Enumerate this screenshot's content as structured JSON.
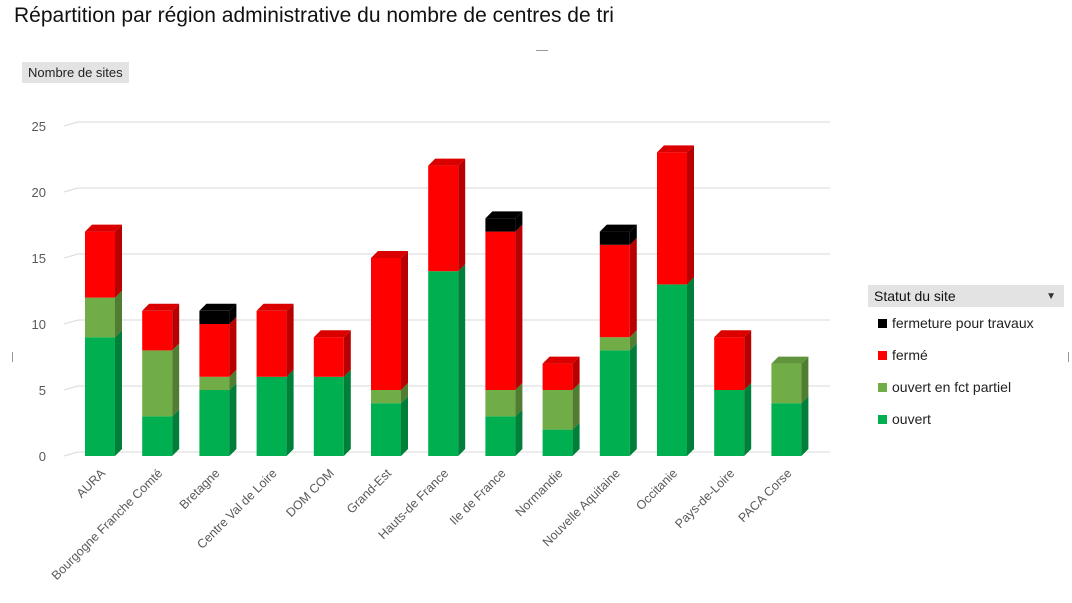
{
  "page": {
    "title": "Répartition par région administrative du nombre de centres de tri"
  },
  "legend": {
    "title": "Statut du site",
    "items": [
      {
        "label": "fermeture pour travaux",
        "color": "#000000"
      },
      {
        "label": "fermé",
        "color": "#ff0000"
      },
      {
        "label": "ouvert en fct partiel",
        "color": "#70ad47"
      },
      {
        "label": "ouvert",
        "color": "#00b050"
      }
    ]
  },
  "chart_data": {
    "type": "bar",
    "stacked": true,
    "title": "Répartition par région administrative du nombre de centres de tri",
    "ylabel": "Nombre de sites",
    "xlabel": "",
    "ylim": [
      0,
      25
    ],
    "yticks": [
      0,
      5,
      10,
      15,
      20,
      25
    ],
    "grid": true,
    "legend_position": "right",
    "categories": [
      "AURA",
      "Bourgogne Franche Comté",
      "Bretagne",
      "Centre Val de Loire",
      "DOM COM",
      "Grand-Est",
      "Hauts-de France",
      "Ile de France",
      "Normandie",
      "Nouvelle Aquitaine",
      "Occitanie",
      "Pays-de-Loire",
      "PACA Corse"
    ],
    "series": [
      {
        "name": "ouvert",
        "color": "#00b050",
        "values": [
          9,
          3,
          5,
          6,
          6,
          4,
          14,
          3,
          2,
          8,
          13,
          5,
          4
        ]
      },
      {
        "name": "ouvert en fct partiel",
        "color": "#70ad47",
        "values": [
          3,
          5,
          1,
          0,
          0,
          1,
          0,
          2,
          3,
          1,
          0,
          0,
          3
        ]
      },
      {
        "name": "fermé",
        "color": "#ff0000",
        "values": [
          5,
          3,
          4,
          5,
          3,
          10,
          8,
          12,
          2,
          7,
          10,
          4,
          0
        ]
      },
      {
        "name": "fermeture pour travaux",
        "color": "#000000",
        "values": [
          0,
          0,
          1,
          0,
          0,
          0,
          0,
          1,
          0,
          1,
          0,
          0,
          0
        ]
      }
    ]
  }
}
